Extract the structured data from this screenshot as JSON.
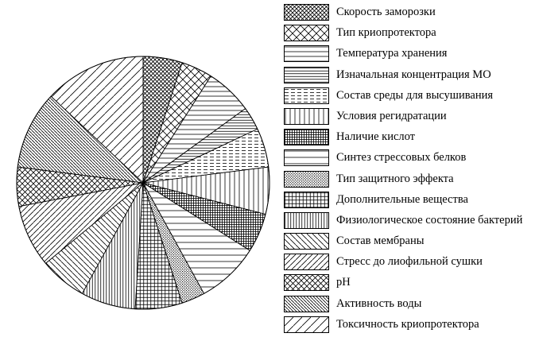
{
  "chart_data": {
    "type": "pie",
    "title": "",
    "legend_position": "right",
    "start_angle_deg": -90,
    "direction": "clockwise",
    "labels": [
      "Скорость заморозки",
      "Тип криопротектора",
      "Температура хранения",
      "Изначальная концентрация МО",
      "Состав среды для высушивания",
      "Условия регидратации",
      "Наличие кислот",
      "Синтез стрессовых белков",
      "Тип защитного эффекта",
      "Дополнительные вещества",
      "Физиологическое состояние бактерий",
      "Состав мембраны",
      "Стресс до лиофильной сушки",
      "pH",
      "Активность воды",
      "Токсичность криопротектора"
    ],
    "values": [
      5,
      4,
      6,
      3,
      5,
      6,
      5,
      8,
      3,
      6,
      7,
      6,
      8,
      5,
      10,
      13
    ],
    "patterns": [
      "diag-cross-dense",
      "diag-cross",
      "horiz",
      "horiz-dense",
      "dash-horiz",
      "vert",
      "grid-small",
      "horiz-sparse",
      "dots-dense",
      "grid-dense",
      "vert-dense",
      "diag-down",
      "diag-up",
      "diag-cross-small",
      "diag-down-dense",
      "diag-up-sparse"
    ],
    "colors": {
      "stroke": "#000000",
      "background": "#ffffff"
    }
  }
}
